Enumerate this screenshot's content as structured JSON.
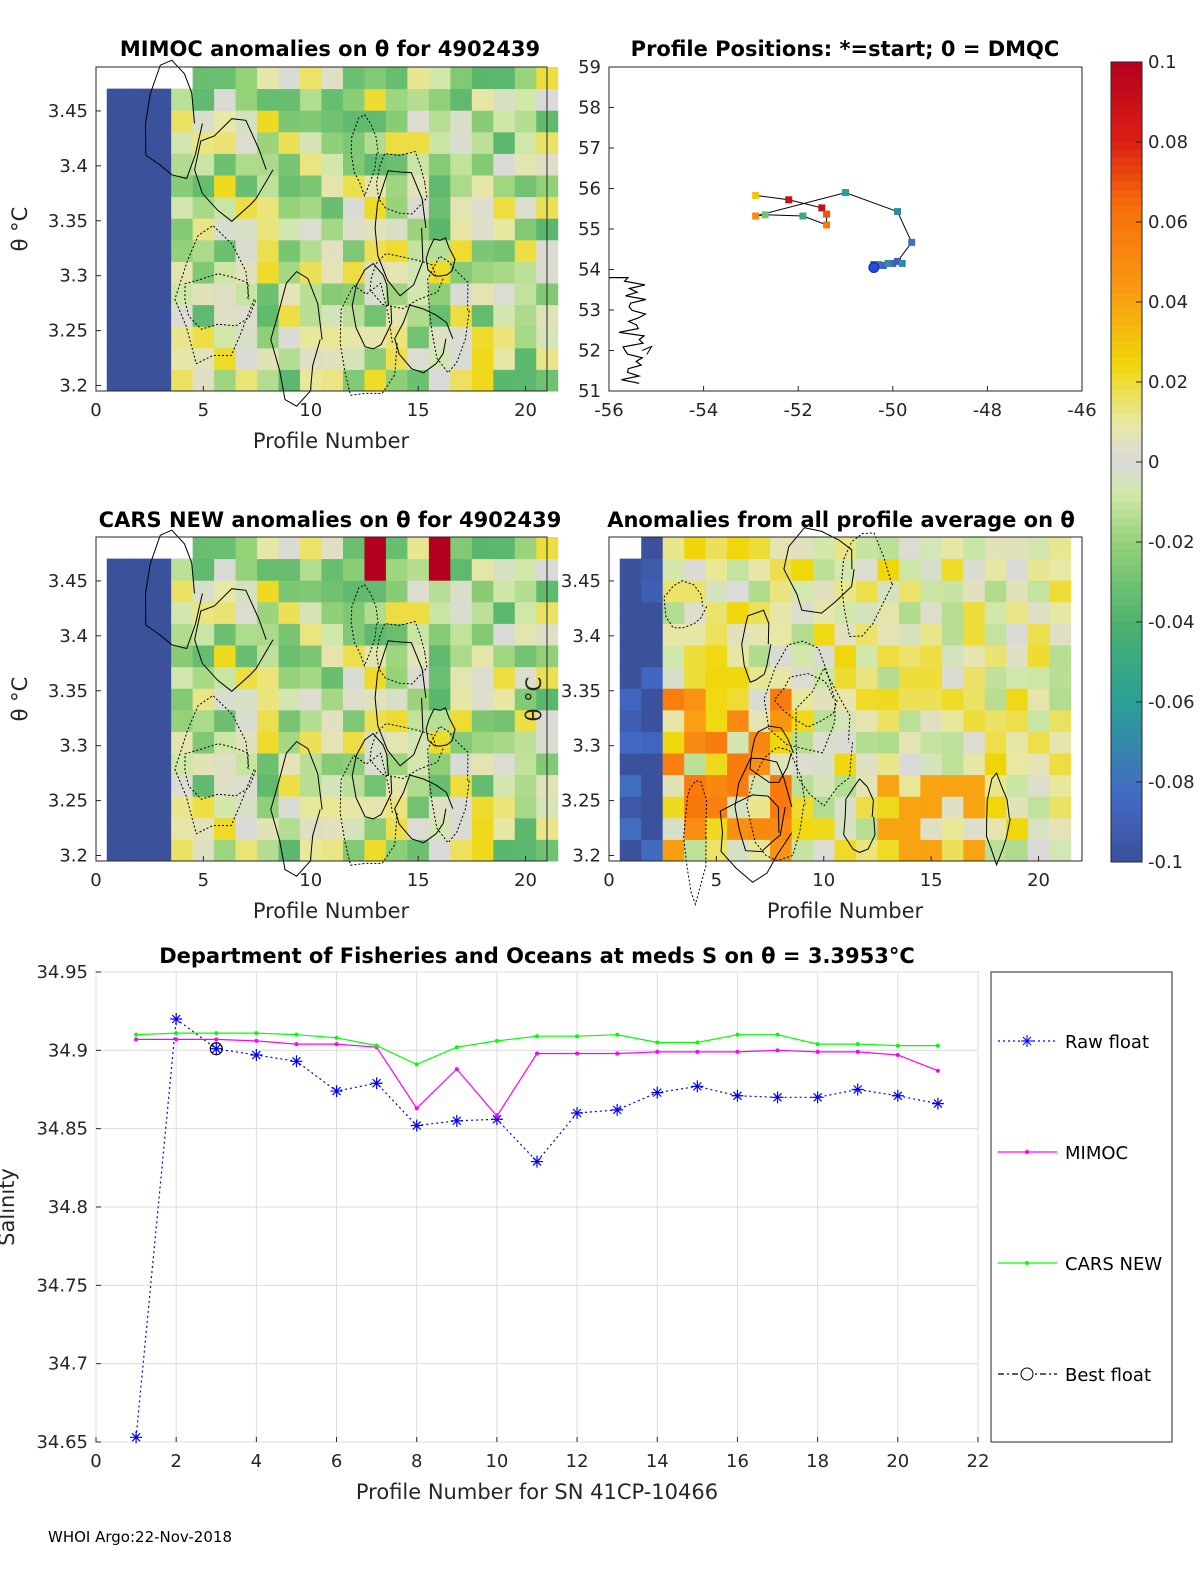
{
  "footer": "WHOI Argo:22-Nov-2018",
  "panels": {
    "mimoc": {
      "title": "MIMOC anomalies on θ  for 4902439",
      "xlabel": "Profile Number",
      "ylabel": "θ °C",
      "xlim": [
        0,
        21
      ],
      "ylim": [
        3.195,
        3.49
      ],
      "xticks": [
        "0",
        "5",
        "10",
        "15",
        "20"
      ],
      "yticks": [
        "3.2",
        "3.25",
        "3.3",
        "3.35",
        "3.4",
        "3.45"
      ]
    },
    "positions": {
      "title": "Profile Positions: *=start; 0 = DMQC",
      "xlim": [
        -56,
        -46
      ],
      "ylim": [
        51,
        59
      ],
      "xticks": [
        "-56",
        "-54",
        "-52",
        "-50",
        "-48",
        "-46"
      ],
      "yticks": [
        "51",
        "52",
        "53",
        "54",
        "55",
        "56",
        "57",
        "58",
        "59"
      ]
    },
    "cars": {
      "title": "CARS NEW anomalies on θ for 4902439",
      "xlabel": "Profile Number",
      "ylabel": "θ °C",
      "xticks": [
        "0",
        "5",
        "10",
        "15",
        "20"
      ],
      "yticks": [
        "3.2",
        "3.25",
        "3.3",
        "3.35",
        "3.4",
        "3.45"
      ]
    },
    "average": {
      "title": "Anomalies from all profile average on θ",
      "xlabel": "Profile Number",
      "ylabel": "θ °C",
      "xticks": [
        "0",
        "5",
        "10",
        "15",
        "20"
      ],
      "yticks": [
        "3.2",
        "3.25",
        "3.3",
        "3.35",
        "3.4",
        "3.45"
      ]
    },
    "colorbar": {
      "ticks": [
        "0.1",
        "0.08",
        "0.06",
        "0.04",
        "0.02",
        "0",
        "-0.02",
        "-0.04",
        "-0.06",
        "-0.08",
        "-0.1"
      ],
      "range": [
        -0.1,
        0.1
      ]
    }
  },
  "chart_data": [
    {
      "type": "line",
      "title": "Department of Fisheries and Oceans at meds S on θ = 3.3953°C",
      "xlabel": "Profile Number for SN 41CP-10466",
      "ylabel": "Salinity",
      "xlim": [
        0,
        22
      ],
      "ylim": [
        34.65,
        34.95
      ],
      "xticks": [
        "0",
        "2",
        "4",
        "6",
        "8",
        "10",
        "12",
        "14",
        "16",
        "18",
        "20",
        "22"
      ],
      "yticks": [
        "34.65",
        "34.7",
        "34.75",
        "34.8",
        "34.85",
        "34.9",
        "34.95"
      ],
      "grid": true,
      "legend_position": "right",
      "series": [
        {
          "name": "Raw float",
          "color": "#0000ff",
          "x": [
            1,
            2,
            3,
            4,
            5,
            6,
            7,
            8,
            9,
            10,
            11,
            12,
            13,
            14,
            15,
            16,
            17,
            18,
            19,
            20,
            21
          ],
          "values": [
            34.653,
            34.92,
            34.901,
            34.897,
            34.893,
            34.874,
            34.879,
            34.852,
            34.855,
            34.856,
            34.829,
            34.86,
            34.862,
            34.873,
            34.877,
            34.871,
            34.87,
            34.87,
            34.875,
            34.871,
            34.866
          ]
        },
        {
          "name": "MIMOC",
          "color": "#ff00ff",
          "x": [
            1,
            2,
            3,
            4,
            5,
            6,
            7,
            8,
            9,
            10,
            11,
            12,
            13,
            14,
            15,
            16,
            17,
            18,
            19,
            20,
            21
          ],
          "values": [
            34.907,
            34.907,
            34.907,
            34.906,
            34.904,
            34.904,
            34.902,
            34.863,
            34.888,
            34.858,
            34.898,
            34.898,
            34.898,
            34.899,
            34.899,
            34.899,
            34.9,
            34.899,
            34.899,
            34.897,
            34.887
          ]
        },
        {
          "name": "CARS NEW",
          "color": "#00ff00",
          "x": [
            1,
            2,
            3,
            4,
            5,
            6,
            7,
            8,
            9,
            10,
            11,
            12,
            13,
            14,
            15,
            16,
            17,
            18,
            19,
            20,
            21
          ],
          "values": [
            34.91,
            34.911,
            34.911,
            34.911,
            34.91,
            34.908,
            34.903,
            34.891,
            34.902,
            34.906,
            34.909,
            34.909,
            34.91,
            34.905,
            34.905,
            34.91,
            34.91,
            34.904,
            34.904,
            34.903,
            34.903
          ]
        },
        {
          "name": "Best float",
          "color": "#000000",
          "x": [
            3
          ],
          "values": [
            34.901
          ]
        }
      ]
    },
    {
      "type": "scatter",
      "title": "Profile Positions: *=start; 0 = DMQC",
      "xlim": [
        -56,
        -46
      ],
      "ylim": [
        51,
        59
      ],
      "lon": [
        -52.9,
        -52.2,
        -51.5,
        -51.4,
        -51.4,
        -51.9,
        -52.7,
        -52.9,
        -51.0,
        -49.9,
        -49.6,
        -49.9,
        -50.0,
        -50.2,
        -50.4,
        -50.4,
        -50.4,
        -50.3,
        -50.3,
        -50.1,
        -49.8
      ],
      "lat": [
        55.83,
        55.72,
        55.52,
        55.37,
        55.1,
        55.32,
        55.35,
        55.32,
        55.9,
        55.43,
        54.67,
        54.2,
        54.15,
        54.1,
        54.08,
        54.05,
        54.12,
        54.1,
        54.12,
        54.15,
        54.15
      ],
      "values": [
        0.03,
        0.09,
        0.09,
        0.07,
        0.06,
        -0.05,
        -0.03,
        0.05,
        -0.06,
        -0.07,
        -0.08,
        -0.09,
        -0.09,
        -0.09,
        -0.09,
        -0.09,
        -0.09,
        -0.08,
        -0.08,
        -0.07,
        -0.07
      ]
    }
  ]
}
